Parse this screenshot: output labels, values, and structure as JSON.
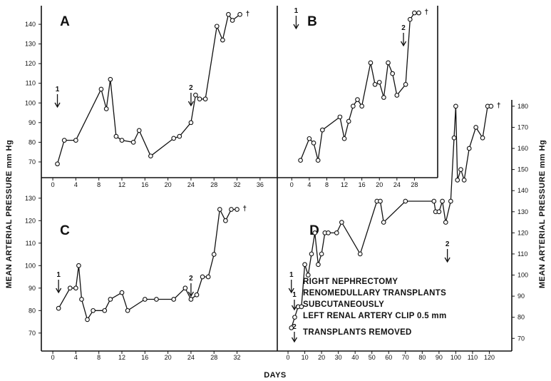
{
  "figure": {
    "y_axis_label": "MEAN ARTERIAL PRESSURE mm Hg",
    "x_axis_label": "DAYS",
    "legend": {
      "marker1": "1",
      "marker2": "2",
      "line1": "RIGHT NEPHRECTOMY",
      "line2": "RENOMEDULLARY TRANSPLANTS",
      "line3": "SUBCUTANEOUSLY",
      "line4": "LEFT RENAL ARTERY CLIP 0.5 mm",
      "line5": "TRANSPLANTS REMOVED"
    },
    "death_symbol": "†"
  },
  "chart_data": [
    {
      "panel": "A",
      "type": "line",
      "x_ticks": [
        0,
        4,
        8,
        12,
        16,
        20,
        24,
        28,
        32,
        36
      ],
      "y_ticks": [
        70,
        80,
        90,
        100,
        110,
        120,
        130,
        140
      ],
      "xlim": [
        -1,
        38
      ],
      "ylim": [
        62,
        148
      ],
      "x": [
        0.8,
        2,
        4,
        8.4,
        9.3,
        10,
        11,
        12,
        14,
        15,
        17,
        21,
        22,
        24,
        24.8,
        25.5,
        26.5,
        28.5,
        29.5,
        30.5,
        31.2,
        32.5
      ],
      "y": [
        69,
        81,
        81,
        107,
        97,
        112,
        83,
        81,
        80,
        86,
        73,
        82,
        83,
        90,
        104,
        102,
        102,
        139,
        132,
        145,
        142,
        145
      ],
      "markers": [
        {
          "label": "1",
          "x": 0.8
        },
        {
          "label": "2",
          "x": 24
        }
      ],
      "died": true
    },
    {
      "panel": "B",
      "type": "line",
      "x_ticks": [
        0,
        4,
        8,
        12,
        16,
        20,
        24,
        28
      ],
      "y_ticks": [
        80,
        90,
        100,
        110,
        120,
        130,
        140
      ],
      "xlim": [
        -2,
        32
      ],
      "ylim": [
        72,
        150
      ],
      "x": [
        2,
        4,
        5,
        6,
        7,
        11,
        12,
        13,
        14,
        15,
        16,
        18,
        19,
        20,
        21,
        22,
        23,
        24,
        26,
        27,
        28,
        29
      ],
      "y": [
        80,
        90,
        88,
        80,
        94,
        100,
        90,
        98,
        105,
        108,
        105,
        125,
        115,
        116,
        109,
        125,
        120,
        110,
        115,
        145,
        148,
        148
      ],
      "markers": [
        {
          "label": "1",
          "x": 1
        },
        {
          "label": "2",
          "x": 25.5
        }
      ],
      "died": true
    },
    {
      "panel": "C",
      "type": "line",
      "x_ticks": [
        0,
        4,
        8,
        12,
        16,
        20,
        24,
        28,
        32
      ],
      "y_ticks": [
        70,
        80,
        90,
        100,
        110,
        120,
        130
      ],
      "xlim": [
        -1,
        38
      ],
      "ylim": [
        62,
        135
      ],
      "x": [
        1,
        3,
        4,
        4.5,
        5,
        6,
        7,
        9,
        10,
        12,
        13,
        16,
        18,
        21,
        23,
        24,
        25,
        26,
        27,
        28,
        29,
        30,
        31,
        32
      ],
      "y": [
        81,
        90,
        90,
        100,
        85,
        76,
        80,
        80,
        85,
        88,
        80,
        85,
        85,
        85,
        90,
        85,
        87,
        95,
        95,
        105,
        125,
        120,
        125,
        125
      ],
      "markers": [
        {
          "label": "1",
          "x": 1
        },
        {
          "label": "2",
          "x": 24
        }
      ],
      "died": true
    },
    {
      "panel": "D",
      "type": "line",
      "x_ticks": [
        0,
        10,
        20,
        30,
        40,
        50,
        60,
        70,
        80,
        90,
        100,
        110,
        120
      ],
      "y_ticks": [
        70,
        80,
        90,
        100,
        110,
        120,
        130,
        140,
        150,
        160,
        170,
        180
      ],
      "xlim": [
        -3,
        130
      ],
      "ylim": [
        64,
        183
      ],
      "x": [
        2,
        4,
        6,
        8,
        10,
        12,
        14,
        16,
        18,
        20,
        22,
        24,
        29,
        32,
        43,
        53,
        55,
        57,
        70,
        87,
        88,
        90,
        92,
        94,
        97,
        99,
        100,
        101,
        103,
        105,
        108,
        112,
        116,
        119,
        121
      ],
      "y": [
        75,
        80,
        85,
        85,
        105,
        100,
        110,
        120,
        105,
        110,
        120,
        120,
        120,
        125,
        110,
        135,
        135,
        125,
        135,
        135,
        130,
        130,
        135,
        125,
        135,
        165,
        180,
        145,
        150,
        145,
        160,
        170,
        165,
        180,
        180
      ],
      "markers": [
        {
          "label": "1",
          "x": 2
        },
        {
          "label": "2",
          "x": 95
        }
      ],
      "died": true
    }
  ]
}
